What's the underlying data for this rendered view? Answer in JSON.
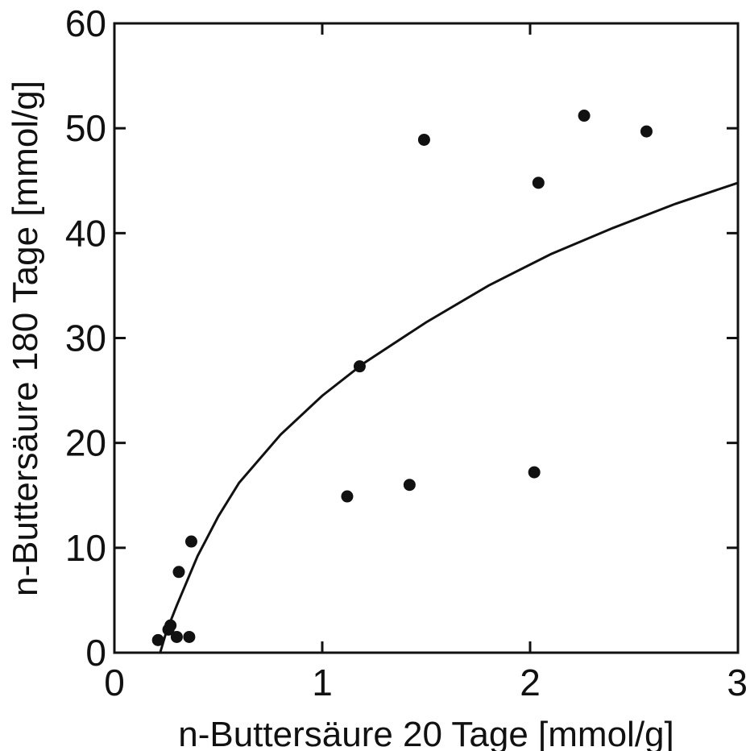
{
  "chart_data": {
    "type": "scatter",
    "xlabel": "n-Buttersäure 20 Tage [mmol/g]",
    "ylabel": "n-Buttersäure 180 Tage [mmol/g]",
    "xlim": [
      0,
      3
    ],
    "ylim": [
      0,
      60
    ],
    "x_ticks": [
      0,
      1,
      2,
      3
    ],
    "y_ticks": [
      0,
      10,
      20,
      30,
      40,
      50,
      60
    ],
    "x_tick_labels": [
      "0",
      "1",
      "2",
      "3"
    ],
    "y_tick_labels": [
      "0",
      "10",
      "20",
      "30",
      "40",
      "50",
      "60"
    ],
    "grid": false,
    "series": [
      {
        "kind": "points",
        "points": [
          {
            "x": 0.21,
            "y": 1.2
          },
          {
            "x": 0.26,
            "y": 2.2
          },
          {
            "x": 0.27,
            "y": 2.6
          },
          {
            "x": 0.3,
            "y": 1.5
          },
          {
            "x": 0.31,
            "y": 7.7
          },
          {
            "x": 0.36,
            "y": 1.5
          },
          {
            "x": 0.37,
            "y": 10.6
          },
          {
            "x": 1.12,
            "y": 14.9
          },
          {
            "x": 1.18,
            "y": 27.3
          },
          {
            "x": 1.42,
            "y": 16.0
          },
          {
            "x": 1.49,
            "y": 48.9
          },
          {
            "x": 2.02,
            "y": 17.2
          },
          {
            "x": 2.04,
            "y": 44.8
          },
          {
            "x": 2.26,
            "y": 51.2
          },
          {
            "x": 2.56,
            "y": 49.7
          }
        ]
      },
      {
        "kind": "fit-curve",
        "points": [
          {
            "x": 0.22,
            "y": 0.0
          },
          {
            "x": 0.25,
            "y": 2.0
          },
          {
            "x": 0.3,
            "y": 4.5
          },
          {
            "x": 0.4,
            "y": 9.2
          },
          {
            "x": 0.5,
            "y": 13.0
          },
          {
            "x": 0.6,
            "y": 16.2
          },
          {
            "x": 0.8,
            "y": 20.8
          },
          {
            "x": 1.0,
            "y": 24.5
          },
          {
            "x": 1.2,
            "y": 27.6
          },
          {
            "x": 1.5,
            "y": 31.5
          },
          {
            "x": 1.8,
            "y": 35.0
          },
          {
            "x": 2.1,
            "y": 38.0
          },
          {
            "x": 2.4,
            "y": 40.5
          },
          {
            "x": 2.7,
            "y": 42.8
          },
          {
            "x": 3.0,
            "y": 44.8
          }
        ]
      }
    ]
  }
}
